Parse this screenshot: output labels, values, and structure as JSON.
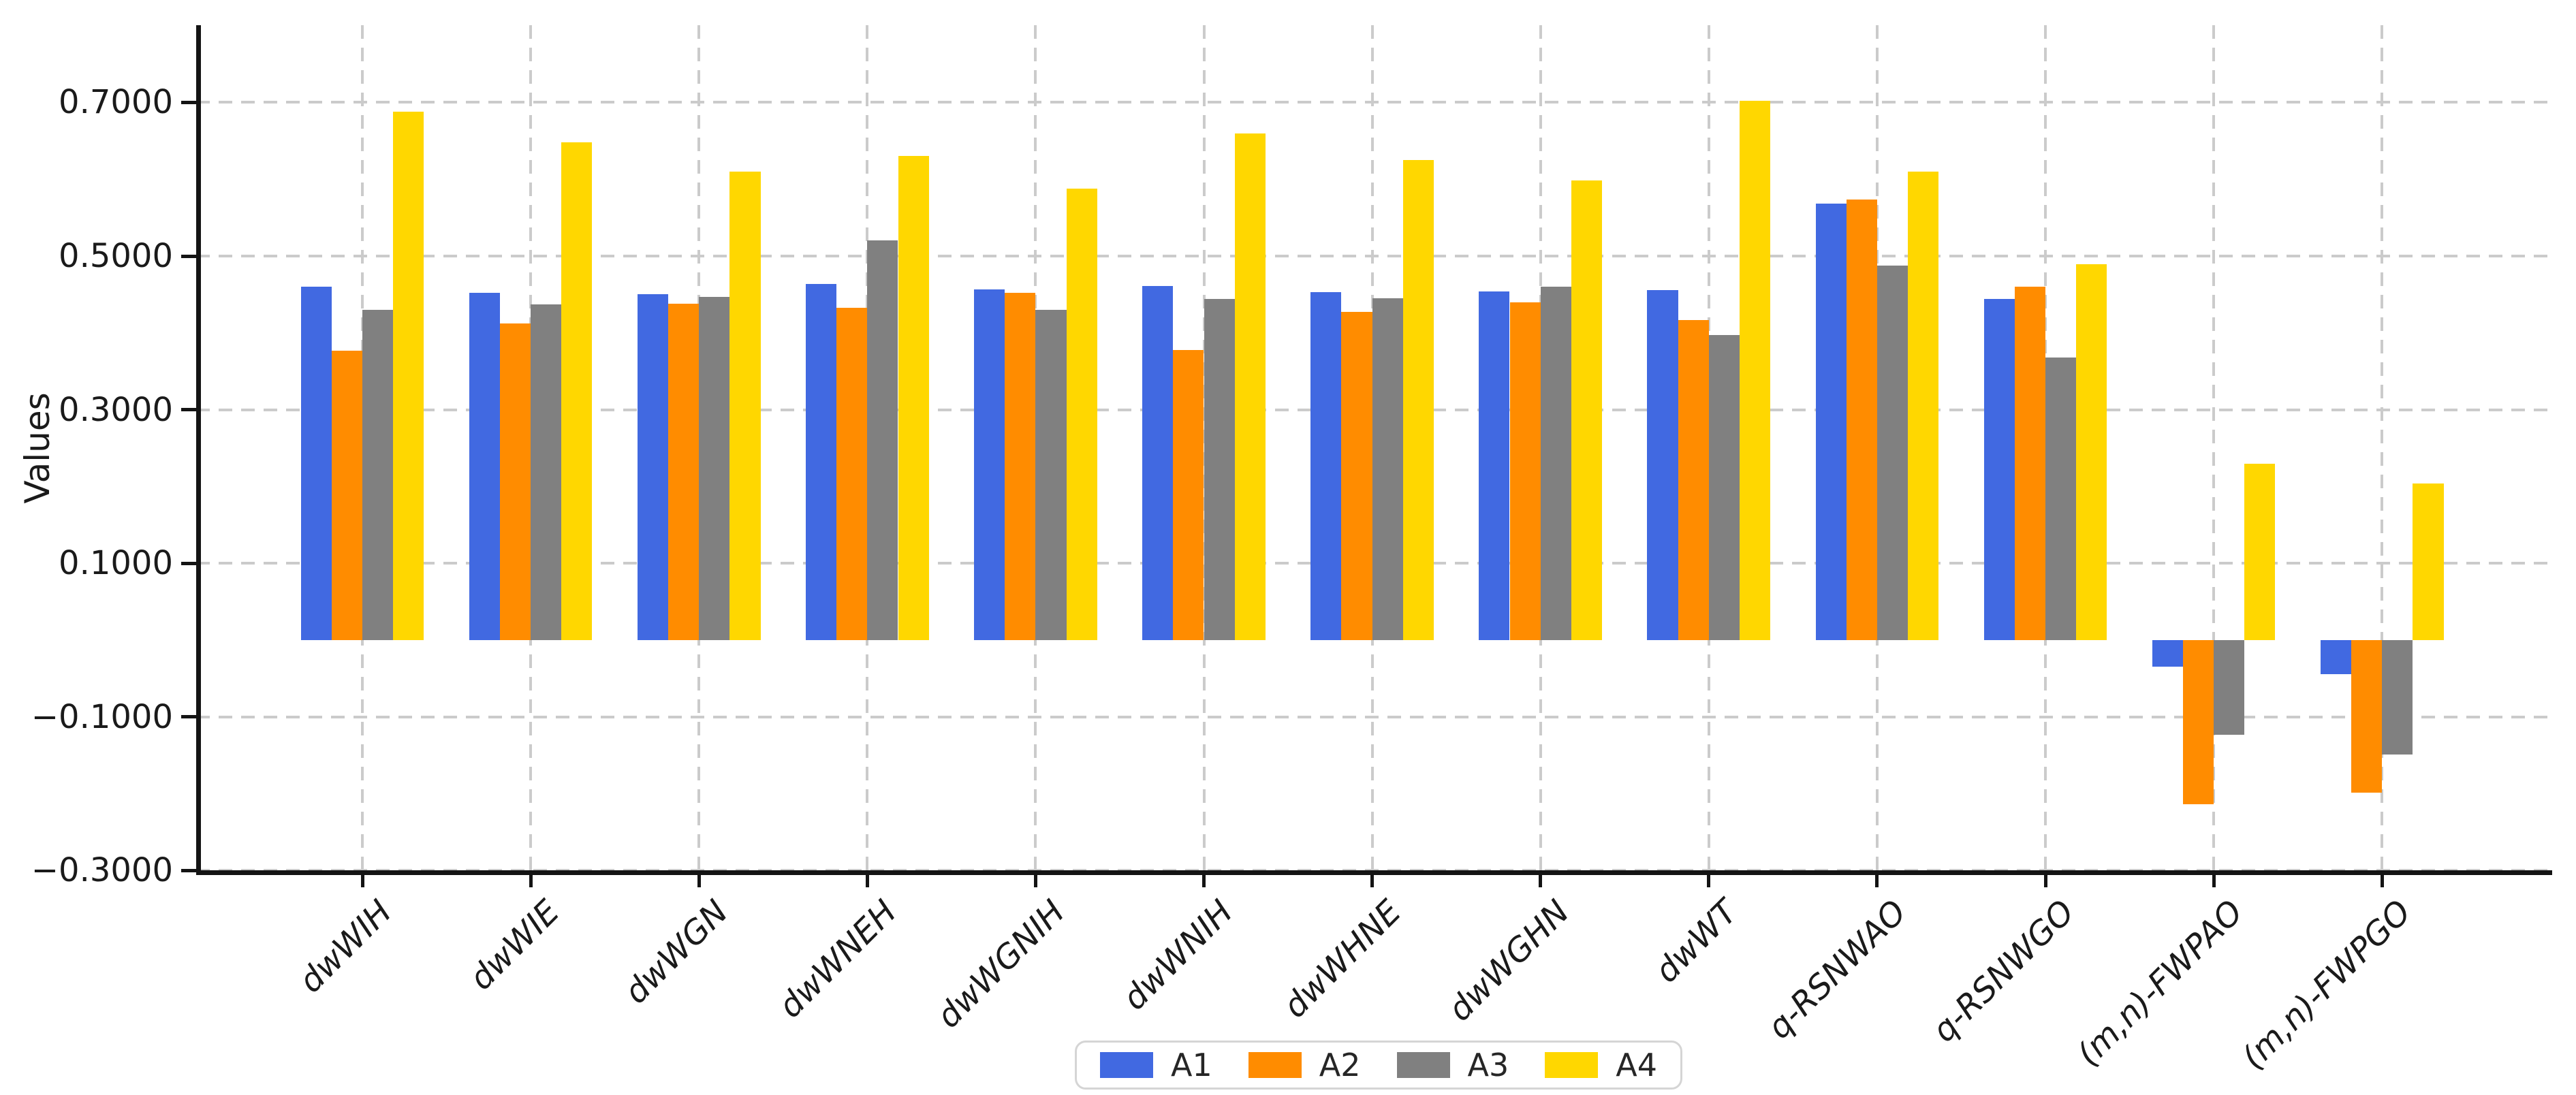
{
  "chart_data": {
    "type": "bar",
    "title": "",
    "xlabel": "",
    "ylabel": "Values",
    "background_color": "#ffffff",
    "grid": "dashed",
    "grid_color": "#cbcbcb",
    "axis_color": "#141414",
    "legend_position": "bottom-center",
    "ylim": [
      -0.3,
      0.8
    ],
    "categories": [
      "dwWIH",
      "dwWIE",
      "dwWGN",
      "dwWNEH",
      "dwWGNIH",
      "dwWNIH",
      "dwWHNE",
      "dwWGHN",
      "dwWT",
      "q-RSNWAO",
      "q-RSNWGO",
      "(m,n)-FWPAO",
      "(m,n)-FWPGO"
    ],
    "yticks": [
      {
        "value": 0.7,
        "label": "0.7000"
      },
      {
        "value": 0.5,
        "label": "0.5000"
      },
      {
        "value": 0.3,
        "label": "0.3000"
      },
      {
        "value": 0.1,
        "label": "0.1000"
      },
      {
        "value": -0.1,
        "label": "−0.1000"
      },
      {
        "value": -0.3,
        "label": "−0.3000"
      }
    ],
    "series": [
      {
        "name": "A1",
        "color": "#4169E1",
        "values": [
          0.46,
          0.452,
          0.45,
          0.464,
          0.457,
          0.461,
          0.453,
          0.454,
          0.456,
          0.568,
          0.444,
          -0.035,
          -0.044
        ]
      },
      {
        "name": "A2",
        "color": "#FF8C00",
        "values": [
          0.377,
          0.412,
          0.438,
          0.433,
          0.452,
          0.378,
          0.427,
          0.44,
          0.417,
          0.574,
          0.46,
          -0.214,
          -0.199
        ]
      },
      {
        "name": "A3",
        "color": "#808080",
        "values": [
          0.43,
          0.437,
          0.447,
          0.52,
          0.43,
          0.444,
          0.445,
          0.46,
          0.397,
          0.488,
          0.368,
          -0.123,
          -0.149
        ]
      },
      {
        "name": "A4",
        "color": "#FFD700",
        "values": [
          0.688,
          0.648,
          0.61,
          0.63,
          0.588,
          0.66,
          0.625,
          0.598,
          0.702,
          0.61,
          0.489,
          0.23,
          0.204
        ]
      }
    ]
  }
}
